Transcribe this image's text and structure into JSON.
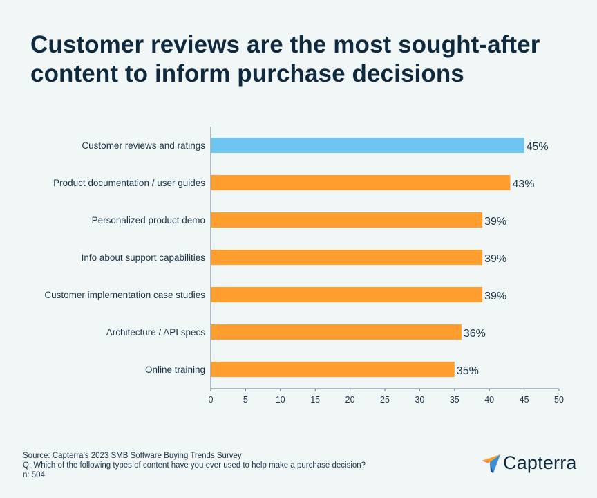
{
  "title": "Customer reviews are the most sought-after content to inform purchase decisions",
  "chart_data": {
    "type": "bar",
    "orientation": "horizontal",
    "categories": [
      "Customer reviews and ratings",
      "Product documentation / user guides",
      "Personalized product demo",
      "Info about support capabilities",
      "Customer implementation case studies",
      "Architecture / API specs",
      "Online training"
    ],
    "values": [
      45,
      43,
      39,
      39,
      39,
      36,
      35
    ],
    "value_labels": [
      "45%",
      "43%",
      "39%",
      "39%",
      "39%",
      "36%",
      "35%"
    ],
    "highlight_index": 0,
    "xlim": [
      0,
      50
    ],
    "xticks": [
      0,
      5,
      10,
      15,
      20,
      25,
      30,
      35,
      40,
      45,
      50
    ],
    "grid": false,
    "colors": {
      "highlight": "#6ec6f0",
      "default": "#ff9d2e",
      "axis": "#6b7a86"
    }
  },
  "footer": {
    "source": "Source: Capterra's 2023 SMB Software Buying Trends Survey",
    "question": "Q: Which of the following types of content have you ever used to help make a purchase decision?",
    "n": "n: 504"
  },
  "logo": {
    "text": "Capterra",
    "icon": "capterra-arrow-icon"
  }
}
